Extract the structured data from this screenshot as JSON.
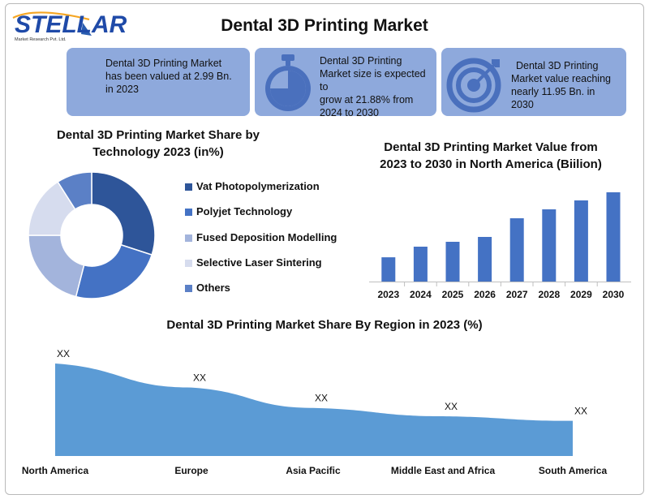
{
  "logo": {
    "word": "STELLAR",
    "subtitle": "Market Research Pvt. Ltd."
  },
  "title": "Dental 3D Printing Market",
  "cards": [
    {
      "text_lines": [
        "Dental 3D Printing Market",
        "has been valued at 2.99 Bn.",
        "in 2023"
      ],
      "icon": "none"
    },
    {
      "text_lines": [
        "Dental 3D Printing",
        "Market size is expected to",
        "grow at 21.88% from",
        "2024 to 2030"
      ],
      "icon": "stopwatch-icon"
    },
    {
      "text_lines": [
        "Dental 3D Printing",
        "Market value reaching",
        "nearly 11.95 Bn. in",
        "2030"
      ],
      "icon": "target-icon"
    }
  ],
  "colors": {
    "card_bg": "#8ea9dc",
    "icon_fill": "#4a70bd",
    "bar": "#4472c4",
    "area": "#5b9bd5"
  },
  "chart_data": [
    {
      "type": "pie",
      "title_lines": [
        "Dental 3D Printing Market Share by",
        "Technology 2023 (in%)"
      ],
      "labels": [
        "Vat Photopolymerization",
        "Polyjet Technology",
        "Fused Deposition Modelling",
        "Selective Laser Sintering",
        "Others"
      ],
      "values": [
        30,
        24,
        21,
        16,
        9
      ],
      "colors": [
        "#2e5599",
        "#4472c4",
        "#a3b4dc",
        "#d6dcee",
        "#5b80c6"
      ],
      "donut": true,
      "legend_position": "right"
    },
    {
      "type": "bar",
      "title_lines": [
        "Dental 3D Printing Market Value from",
        "2023 to 2030 in North America (Biilion)"
      ],
      "categories": [
        "2023",
        "2024",
        "2025",
        "2026",
        "2027",
        "2028",
        "2029",
        "2030"
      ],
      "values": [
        2.99,
        4.3,
        4.9,
        5.5,
        7.8,
        8.9,
        10.0,
        11.0
      ],
      "ylim": [
        0,
        11.5
      ],
      "grid": false
    },
    {
      "type": "area",
      "title": "Dental 3D Printing Market Share By Region in 2023 (%)",
      "categories": [
        "North America",
        "Europe",
        "Asia Pacific",
        "Middle East and Africa",
        "South America"
      ],
      "values": [
        100,
        74,
        52,
        43,
        38
      ],
      "data_labels": [
        "XX",
        "XX",
        "XX",
        "XX",
        "XX"
      ],
      "ylim": [
        0,
        100
      ],
      "grid": false
    }
  ]
}
